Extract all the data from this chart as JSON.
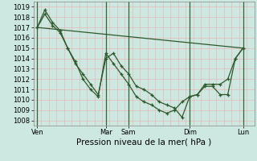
{
  "title": "",
  "xlabel": "Pression niveau de la mer( hPa )",
  "bg_color": "#cce8e0",
  "line_color": "#2d5a2d",
  "grid_color": "#e8b8b8",
  "vline_color": "#336633",
  "ylim": [
    1007.5,
    1019.5
  ],
  "yticks": [
    1008,
    1009,
    1010,
    1011,
    1012,
    1013,
    1014,
    1015,
    1016,
    1017,
    1018,
    1019
  ],
  "day_labels": [
    "Ven",
    "Mar",
    "Sam",
    "Dim",
    "Lun"
  ],
  "day_x": [
    0.5,
    9.5,
    12.5,
    20.5,
    27.5
  ],
  "vline_x": [
    0.5,
    9.5,
    12.5,
    20.5,
    27.5
  ],
  "xlim": [
    0,
    29
  ],
  "line_trend_x": [
    0.5,
    27.5
  ],
  "line_trend_y": [
    1017.0,
    1015.0
  ],
  "line1_x": [
    0.5,
    1.5,
    2.5,
    3.5,
    4.5,
    5.5,
    6.5,
    7.5,
    8.5,
    9.5,
    10.5,
    11.5,
    12.5,
    13.5,
    14.5,
    15.5,
    16.5,
    17.5,
    18.5,
    19.5,
    20.5,
    21.5,
    22.5,
    23.5,
    24.5,
    25.5,
    26.5,
    27.5
  ],
  "line1_y": [
    1017.0,
    1018.7,
    1017.5,
    1016.7,
    1015.0,
    1013.5,
    1012.5,
    1011.5,
    1010.5,
    1014.0,
    1014.5,
    1013.3,
    1012.5,
    1011.3,
    1011.0,
    1010.5,
    1009.8,
    1009.5,
    1009.2,
    1008.3,
    1010.3,
    1010.5,
    1011.3,
    1011.3,
    1010.5,
    1010.5,
    1014.0,
    1015.0
  ],
  "line2_x": [
    0.5,
    1.5,
    2.5,
    3.5,
    4.5,
    5.5,
    6.5,
    7.5,
    8.5,
    9.5,
    10.5,
    11.5,
    12.5,
    13.5,
    14.5,
    15.5,
    16.5,
    17.5,
    18.5,
    19.5,
    20.5,
    21.5,
    22.5,
    23.5,
    24.5,
    25.5,
    26.5,
    27.5
  ],
  "line2_y": [
    1017.0,
    1018.3,
    1017.2,
    1016.5,
    1015.0,
    1013.7,
    1012.0,
    1011.0,
    1010.3,
    1014.5,
    1013.5,
    1012.5,
    1011.5,
    1010.3,
    1009.8,
    1009.5,
    1009.0,
    1008.7,
    1009.0,
    1009.8,
    1010.3,
    1010.5,
    1011.5,
    1011.5,
    1011.5,
    1012.0,
    1014.0,
    1015.0
  ],
  "marker_size": 3.5,
  "tick_fontsize": 6,
  "label_fontsize": 7.5
}
